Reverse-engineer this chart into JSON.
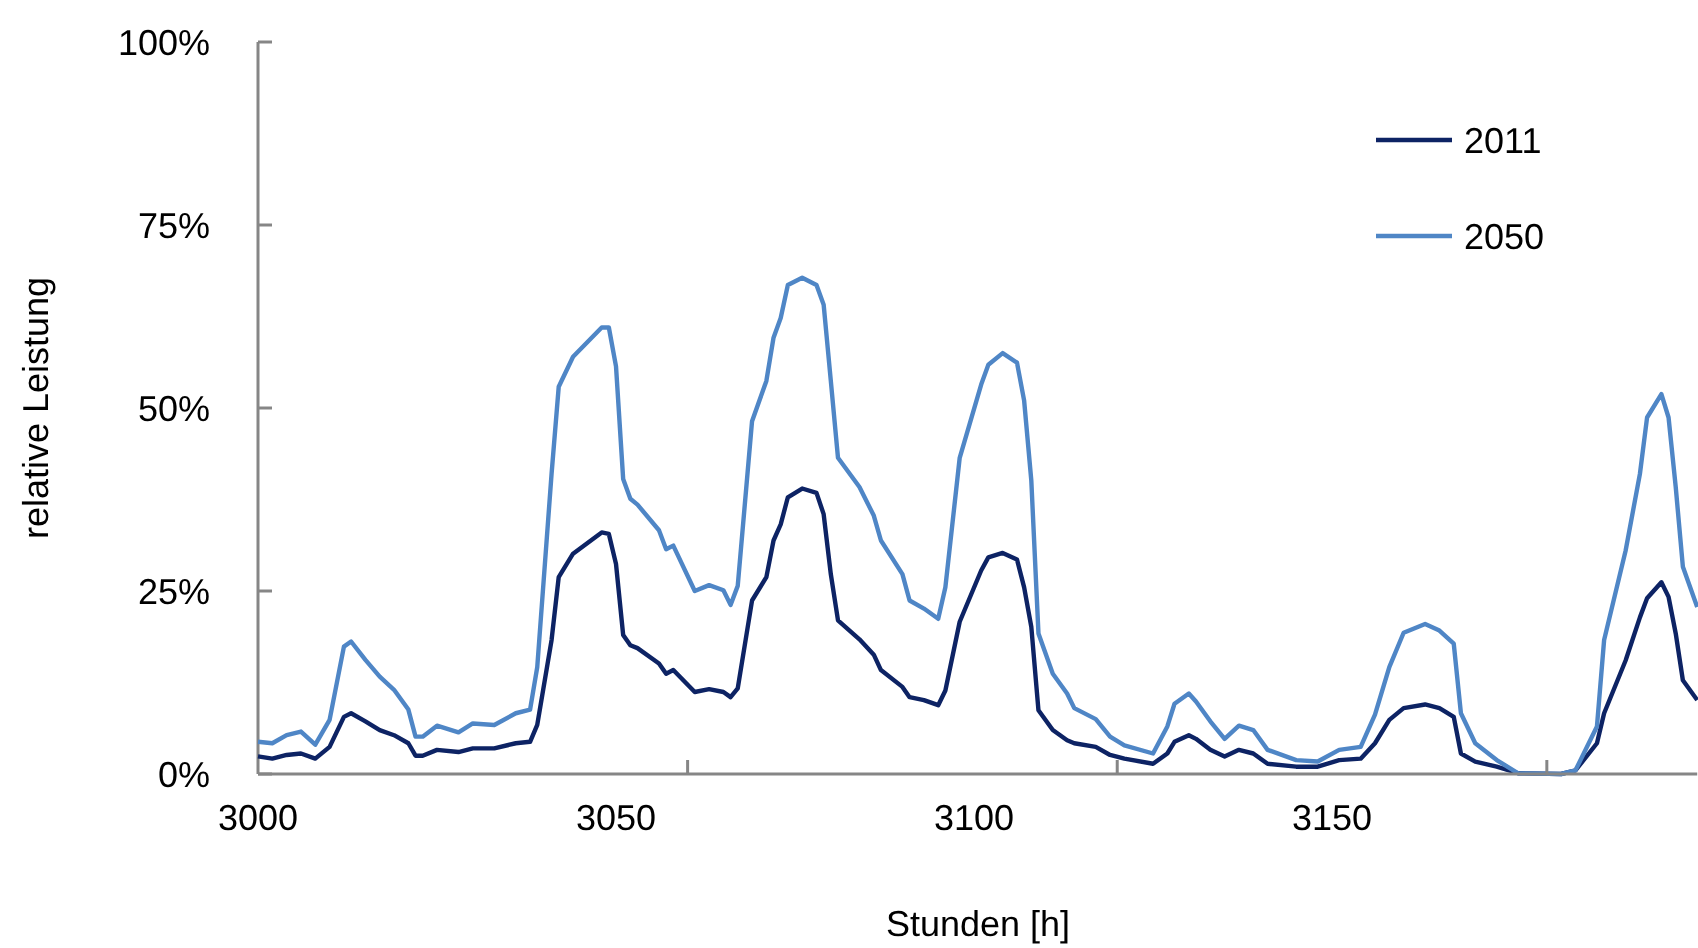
{
  "chart_data": {
    "type": "line",
    "xlabel": "Stunden [h]",
    "ylabel": "relative Leistung",
    "x": [
      3000,
      3002,
      3004,
      3006,
      3008,
      3010,
      3012,
      3013,
      3015,
      3017,
      3019,
      3021,
      3022,
      3023,
      3025,
      3028,
      3030,
      3033,
      3036,
      3038,
      3039,
      3041,
      3042,
      3044,
      3048,
      3049,
      3050,
      3051,
      3052,
      3053,
      3056,
      3057,
      3058,
      3061,
      3063,
      3065,
      3066,
      3067,
      3069,
      3071,
      3072,
      3073,
      3074,
      3076,
      3078,
      3079,
      3080,
      3081,
      3084,
      3086,
      3087,
      3090,
      3091,
      3093,
      3095,
      3096,
      3098,
      3101,
      3102,
      3104,
      3106,
      3107,
      3108,
      3109,
      3111,
      3113,
      3114,
      3117,
      3119,
      3121,
      3125,
      3127,
      3128,
      3130,
      3131,
      3133,
      3135,
      3137,
      3139,
      3141,
      3145,
      3148,
      3151,
      3154,
      3156,
      3158,
      3160,
      3163,
      3165,
      3167,
      3168,
      3170,
      3173,
      3176,
      3182,
      3184,
      3187,
      3188,
      3191,
      3193,
      3194,
      3196,
      3197,
      3198,
      3199,
      3201
    ],
    "series": [
      {
        "name": "2011",
        "color": "#0d2364",
        "values": [
          2.4,
          2.1,
          2.6,
          2.8,
          2.1,
          3.7,
          7.8,
          8.3,
          7.2,
          6.0,
          5.3,
          4.2,
          2.5,
          2.5,
          3.3,
          3.0,
          3.5,
          3.5,
          4.2,
          4.4,
          6.7,
          18.3,
          26.9,
          30.1,
          33.0,
          32.8,
          28.7,
          19.0,
          17.6,
          17.2,
          15.1,
          13.7,
          14.2,
          11.2,
          11.6,
          11.2,
          10.5,
          11.7,
          23.7,
          26.9,
          31.9,
          34.1,
          37.8,
          39.0,
          38.4,
          35.5,
          27.3,
          21.0,
          18.4,
          16.3,
          14.2,
          11.9,
          10.5,
          10.1,
          9.4,
          11.4,
          20.8,
          27.8,
          29.6,
          30.2,
          29.3,
          25.5,
          20.1,
          8.7,
          6.0,
          4.6,
          4.2,
          3.7,
          2.6,
          2.1,
          1.4,
          2.8,
          4.4,
          5.3,
          4.8,
          3.3,
          2.4,
          3.3,
          2.8,
          1.4,
          1.0,
          1.0,
          1.9,
          2.1,
          4.2,
          7.4,
          9.0,
          9.5,
          9.0,
          7.8,
          2.8,
          1.7,
          1.0,
          0.1,
          0,
          0.5,
          4.2,
          8.3,
          15.5,
          21.4,
          24,
          26.2,
          24.2,
          19.2,
          12.8,
          10.1
        ]
      },
      {
        "name": "2050",
        "color": "#4f86c6",
        "values": [
          4.4,
          4.2,
          5.3,
          5.8,
          4.0,
          7.4,
          17.4,
          18.1,
          15.6,
          13.3,
          11.5,
          8.8,
          5.1,
          5.1,
          6.6,
          5.7,
          6.9,
          6.7,
          8.3,
          8.8,
          14.6,
          41,
          52.9,
          57,
          61,
          61,
          55.7,
          40.3,
          37.6,
          36.8,
          33.3,
          30.7,
          31.2,
          25,
          25.8,
          25.1,
          23.1,
          25.7,
          48.2,
          53.7,
          59.6,
          62.3,
          66.8,
          67.8,
          66.8,
          64.1,
          53.7,
          43.2,
          39.2,
          35.3,
          31.9,
          27.3,
          23.7,
          22.6,
          21.2,
          25.5,
          43.2,
          53.2,
          55.9,
          57.5,
          56.2,
          51,
          40.1,
          19.2,
          13.7,
          11,
          9.0,
          7.5,
          5.1,
          3.9,
          2.8,
          6.5,
          9.6,
          11,
          9.9,
          7.2,
          4.8,
          6.6,
          6.0,
          3.3,
          1.9,
          1.7,
          3.3,
          3.7,
          8.1,
          14.6,
          19.3,
          20.5,
          19.6,
          17.8,
          8.3,
          4.2,
          1.9,
          0.1,
          0,
          0.5,
          6.5,
          18.3,
          30.5,
          41,
          48.7,
          51.9,
          48.7,
          39.2,
          28.3,
          22.8
        ]
      }
    ],
    "xlim": [
      3000,
      3201
    ],
    "xticks": [
      3000,
      3050,
      {
        "value": 3060,
        "label": null
      },
      3100,
      {
        "value": 3120,
        "label": null
      },
      3150,
      {
        "value": 3180,
        "label": null
      }
    ],
    "ylim": [
      0,
      100
    ],
    "yticks": [
      {
        "value": 0,
        "label": "0%"
      },
      {
        "value": 25,
        "label": "25%"
      },
      {
        "value": 50,
        "label": "50%"
      },
      {
        "value": 75,
        "label": "75%"
      },
      {
        "value": 100,
        "label": "100%"
      }
    ],
    "grid": false,
    "legend": "top right",
    "marker": "none",
    "line_style": "solid"
  }
}
